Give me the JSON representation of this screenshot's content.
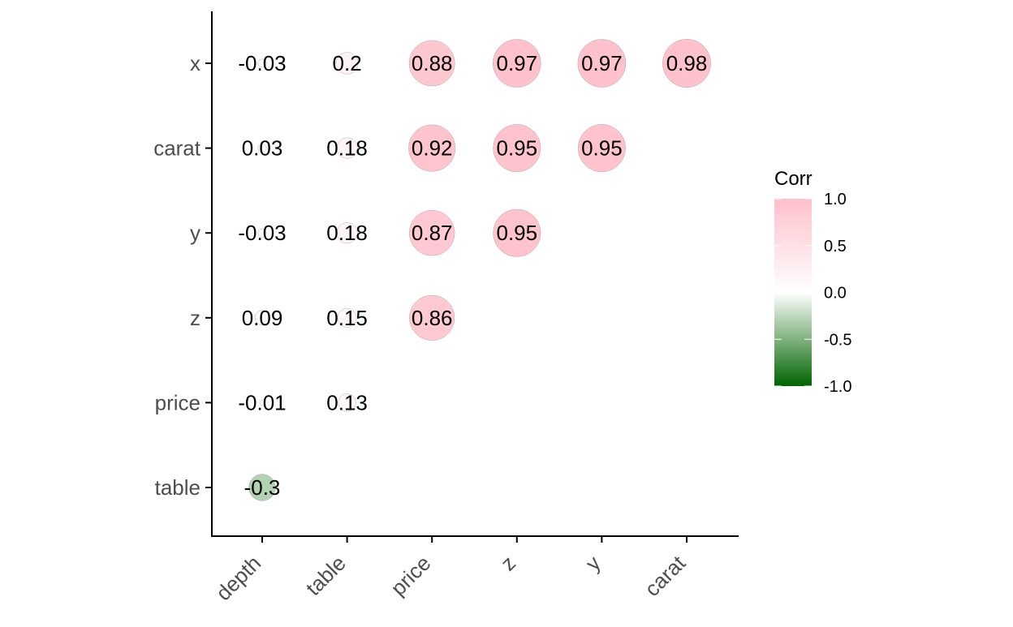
{
  "chart_data": {
    "type": "correlation-matrix",
    "x_labels": [
      "depth",
      "table",
      "price",
      "z",
      "y",
      "carat"
    ],
    "y_labels": [
      "x",
      "carat",
      "y",
      "z",
      "price",
      "table"
    ],
    "cells": [
      {
        "row": "x",
        "col": "depth",
        "value": -0.03,
        "label": "-0.03"
      },
      {
        "row": "x",
        "col": "table",
        "value": 0.2,
        "label": "0.2"
      },
      {
        "row": "x",
        "col": "price",
        "value": 0.88,
        "label": "0.88"
      },
      {
        "row": "x",
        "col": "z",
        "value": 0.97,
        "label": "0.97"
      },
      {
        "row": "x",
        "col": "y",
        "value": 0.97,
        "label": "0.97"
      },
      {
        "row": "x",
        "col": "carat",
        "value": 0.98,
        "label": "0.98"
      },
      {
        "row": "carat",
        "col": "depth",
        "value": 0.03,
        "label": "0.03"
      },
      {
        "row": "carat",
        "col": "table",
        "value": 0.18,
        "label": "0.18"
      },
      {
        "row": "carat",
        "col": "price",
        "value": 0.92,
        "label": "0.92"
      },
      {
        "row": "carat",
        "col": "z",
        "value": 0.95,
        "label": "0.95"
      },
      {
        "row": "carat",
        "col": "y",
        "value": 0.95,
        "label": "0.95"
      },
      {
        "row": "y",
        "col": "depth",
        "value": -0.03,
        "label": "-0.03"
      },
      {
        "row": "y",
        "col": "table",
        "value": 0.18,
        "label": "0.18"
      },
      {
        "row": "y",
        "col": "price",
        "value": 0.87,
        "label": "0.87"
      },
      {
        "row": "y",
        "col": "z",
        "value": 0.95,
        "label": "0.95"
      },
      {
        "row": "z",
        "col": "depth",
        "value": 0.09,
        "label": "0.09"
      },
      {
        "row": "z",
        "col": "table",
        "value": 0.15,
        "label": "0.15"
      },
      {
        "row": "z",
        "col": "price",
        "value": 0.86,
        "label": "0.86"
      },
      {
        "row": "price",
        "col": "depth",
        "value": -0.01,
        "label": "-0.01"
      },
      {
        "row": "price",
        "col": "table",
        "value": 0.13,
        "label": "0.13"
      },
      {
        "row": "table",
        "col": "depth",
        "value": -0.3,
        "label": "-0.3"
      }
    ],
    "legend": {
      "title": "Corr",
      "ticks": [
        "1.0",
        "0.5",
        "0.0",
        "-0.5",
        "-1.0"
      ],
      "tick_values": [
        1.0,
        0.5,
        0.0,
        -0.5,
        -1.0
      ],
      "colors": {
        "high": "#ffc0cb",
        "mid": "#ffffff",
        "low": "#006400"
      }
    },
    "value_range": [
      -1.0,
      1.0
    ]
  }
}
